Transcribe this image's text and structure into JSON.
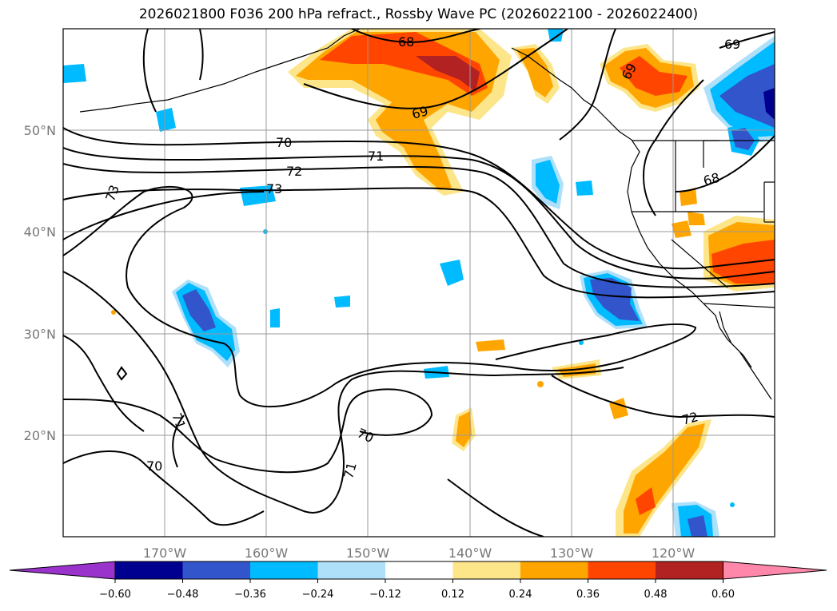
{
  "title": "2026021800 F036 200 hPa refract., Rossby Wave PC (2026022100 - 2026022400)",
  "longitude_labels": [
    "170°W",
    "160°W",
    "150°W",
    "140°W",
    "130°W",
    "120°W"
  ],
  "latitude_labels": [
    "50°N",
    "40°N",
    "30°N",
    "20°N"
  ],
  "colorbar": {
    "tick_labels": [
      "−0.60",
      "−0.48",
      "−0.36",
      "−0.24",
      "−0.12",
      "0.12",
      "0.24",
      "0.36",
      "0.48",
      "0.60"
    ],
    "colors": [
      "#9933cc",
      "#000090",
      "#3355cc",
      "#00bbff",
      "#aee0fa",
      "#ffffff",
      "#fde58a",
      "#ffa500",
      "#ff4500",
      "#b22222",
      "#ff88aa"
    ]
  },
  "contour_labels": [
    "68",
    "69",
    "69",
    "69",
    "68",
    "70",
    "71",
    "72",
    "73",
    "73",
    "71",
    "70",
    "71",
    "70",
    "72"
  ]
}
